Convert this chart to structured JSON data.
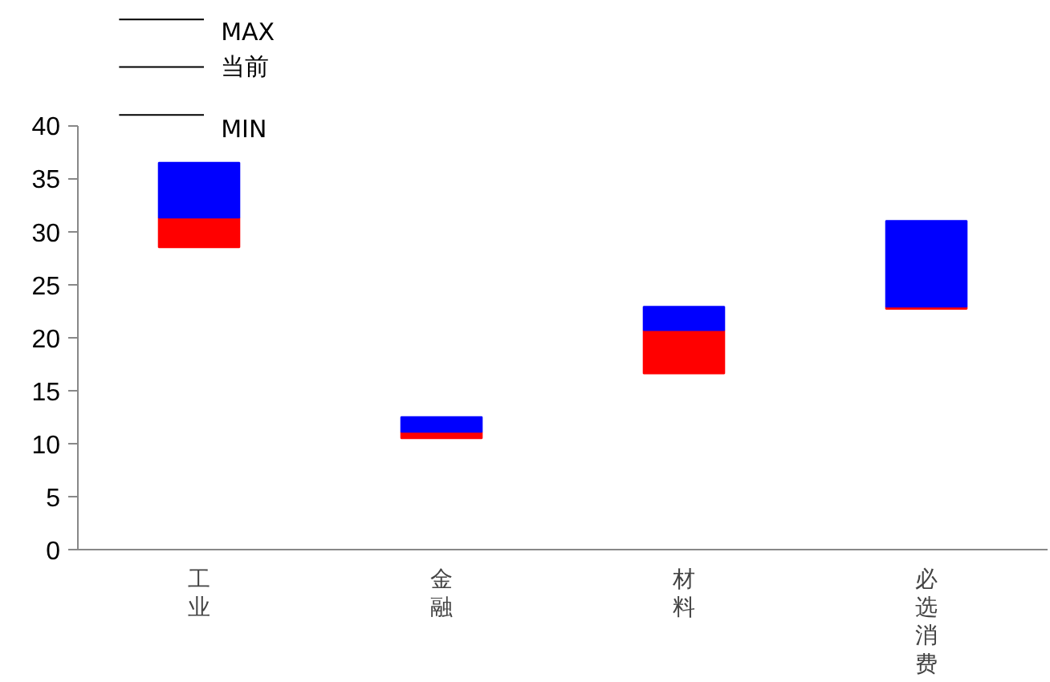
{
  "chart_data": {
    "type": "bar",
    "categories": [
      "工业",
      "金融",
      "材料",
      "必选消费"
    ],
    "series": [
      {
        "color": "#ff0000",
        "base": [
          28.5,
          10.5,
          16.6,
          22.7
        ],
        "values": [
          2.8,
          0.6,
          4.1,
          0.2
        ]
      },
      {
        "color": "#0000ff",
        "base": [
          31.3,
          11.1,
          20.7,
          22.9
        ],
        "values": [
          5.2,
          1.4,
          2.2,
          8.1
        ]
      }
    ],
    "ylim": [
      0,
      40
    ],
    "yticks": [
      0,
      5,
      10,
      15,
      20,
      25,
      30,
      35,
      40
    ],
    "grid": false,
    "annotations": [
      "MAX",
      "当前",
      "MIN"
    ]
  }
}
